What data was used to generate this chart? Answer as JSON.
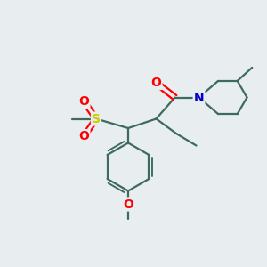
{
  "bg_color": "#e8edf0",
  "bond_color": "#3d6b5e",
  "atom_colors": {
    "N": "#0000cc",
    "O": "#ff0000",
    "S": "#cccc00"
  },
  "bond_width": 1.6,
  "figsize": [
    3.0,
    3.0
  ],
  "dpi": 100,
  "xlim": [
    0,
    10
  ],
  "ylim": [
    0,
    10
  ]
}
